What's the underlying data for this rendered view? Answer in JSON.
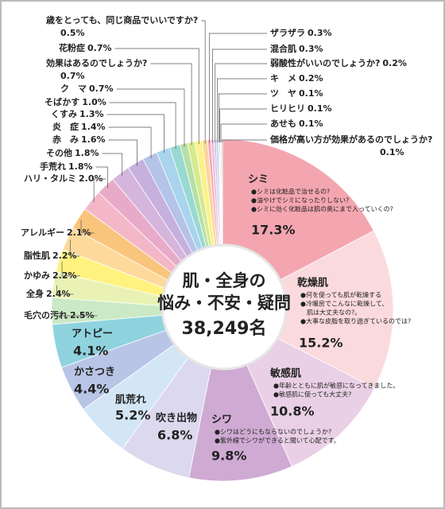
{
  "chart_data": {
    "type": "pie",
    "center_title": [
      "肌・全身の",
      "悩み・不安・疑問"
    ],
    "center_count": "38,249名",
    "categories": [
      "シミ",
      "乾燥肌",
      "敏感肌",
      "シワ",
      "吹き出物",
      "肌荒れ",
      "かさつき",
      "アトピー",
      "毛穴の汚れ",
      "全身",
      "かゆみ",
      "脂性肌",
      "アレルギー",
      "ハリ・タルミ",
      "手荒れ",
      "その他",
      "赤　み",
      "炎　症",
      "くすみ",
      "そばかす",
      "ク　マ",
      "効果はあるのでしょうか?",
      "花粉症",
      "歳をとっても、同じ商品でいいですか?",
      "ザラザラ",
      "混合肌",
      "弱酸性がいいのでしょうか?",
      "キ　メ",
      "ツ　ヤ",
      "ヒリヒリ",
      "あせも",
      "価格が高い方が効果があるのでしょうか?"
    ],
    "values": [
      17.3,
      15.2,
      10.8,
      9.8,
      6.8,
      5.2,
      4.4,
      4.1,
      2.5,
      2.4,
      2.2,
      2.2,
      2.1,
      2.0,
      1.8,
      1.8,
      1.6,
      1.4,
      1.3,
      1.0,
      0.7,
      0.7,
      0.7,
      0.5,
      0.3,
      0.3,
      0.2,
      0.2,
      0.1,
      0.1,
      0.1,
      0.1
    ],
    "value_labels": [
      "17.3%",
      "15.2%",
      "10.8%",
      "9.8%",
      "6.8%",
      "5.2%",
      "4.4%",
      "4.1%",
      "2.5%",
      "2.4%",
      "2.2%",
      "2.2%",
      "2.1%",
      "2.0%",
      "1.8%",
      "1.8%",
      "1.6%",
      "1.4%",
      "1.3%",
      "1.0%",
      "0.7%",
      "0.7%",
      "0.7%",
      "0.5%",
      "0.3%",
      "0.3%",
      "0.2%",
      "0.2%",
      "0.1%",
      "0.1%",
      "0.1%",
      "0.1%"
    ],
    "colors": [
      "#f4a6b0",
      "#fbdadd",
      "#ead0e6",
      "#cfaad3",
      "#dcd8ee",
      "#d3e6f6",
      "#b9c5e6",
      "#8fd3df",
      "#cbe9c4",
      "#e9f2b4",
      "#fff27e",
      "#fdd99c",
      "#f9c47c",
      "#f4b7c8",
      "#e8aac9",
      "#d6b5dc",
      "#c6b0de",
      "#b4c3e7",
      "#a8d4ed",
      "#99d9d2",
      "#b5e0a6",
      "#d6ea8f",
      "#fbf28b",
      "#fbd59a",
      "#f6a8b8",
      "#eec1da",
      "#d5bde3",
      "#bfd0ef",
      "#a9dcef",
      "#a6e0cc",
      "#d7eeb0",
      "#aeb8d9"
    ],
    "notes": [
      [
        "●シミは化粧品で治せるの?",
        "●油やけでシミになったりしない?",
        "●シミに効く化粧品は肌の奥にまで入っていくの?"
      ],
      [
        "●何を使っても肌が乾燥する",
        "●冷暖房でこんなに乾燥して、",
        "　肌は大丈夫なの?。",
        "●大事な皮脂を取り過ぎているのでは?"
      ],
      [
        "●年齢とともに肌が敏感になってきました。",
        "●敏感肌に使っても大丈夫?"
      ],
      [
        "●シワはどうにもならないのでしょうか?",
        "●紫外線でシワができると聞いて心配です。"
      ],
      [],
      [],
      [],
      [],
      [],
      [],
      [],
      [],
      [],
      [],
      [],
      [],
      [],
      [],
      [],
      [],
      [],
      [],
      [],
      [],
      [],
      [],
      [],
      [],
      [],
      [],
      [],
      []
    ]
  }
}
